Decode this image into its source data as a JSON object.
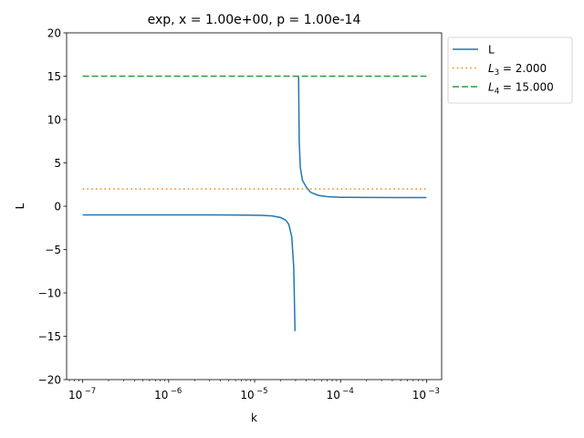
{
  "chart_data": {
    "type": "line",
    "title": "exp, x = 1.00e+00, p = 1.00e-14",
    "xlabel": "k",
    "ylabel": "L",
    "xscale": "log",
    "xlim": [
      6.5e-08,
      0.0015
    ],
    "ylim": [
      -20,
      20
    ],
    "xticks": [
      "10^-7",
      "10^-6",
      "10^-5",
      "10^-4",
      "10^-3"
    ],
    "yticks": [
      -20,
      -15,
      -10,
      -5,
      0,
      5,
      10,
      15,
      20
    ],
    "legend_position": "outside upper right",
    "series": [
      {
        "name": "L",
        "color": "#1f77b4",
        "style": "solid",
        "x": [
          1e-07,
          3e-07,
          1e-06,
          3e-06,
          8e-06,
          1.2e-05,
          1.6e-05,
          2e-05,
          2.3e-05,
          2.5e-05,
          2.7e-05,
          2.85e-05,
          2.95e-05,
          3.25e-05,
          3.3e-05,
          3.4e-05,
          3.6e-05,
          4e-05,
          4.5e-05,
          5.5e-05,
          7e-05,
          0.0001,
          0.0002,
          0.0005,
          0.001
        ],
        "y": [
          -1.0,
          -1.0,
          -1.0,
          -1.0,
          -1.02,
          -1.05,
          -1.12,
          -1.3,
          -1.6,
          -2.1,
          -3.5,
          -7.0,
          -14.4,
          15.0,
          7.5,
          4.5,
          3.0,
          2.2,
          1.6,
          1.25,
          1.1,
          1.03,
          1.01,
          1.0,
          1.0
        ]
      },
      {
        "name": "L_3 = 2.000",
        "color": "#ff7f0e",
        "style": "dotted",
        "x": [
          1e-07,
          0.001
        ],
        "y": [
          2.0,
          2.0
        ]
      },
      {
        "name": "L_4 = 15.000",
        "color": "#2ca02c",
        "style": "dashed",
        "x": [
          1e-07,
          0.001
        ],
        "y": [
          15.0,
          15.0
        ]
      }
    ]
  },
  "legend": {
    "items": [
      {
        "label": "L"
      },
      {
        "label_main": "L",
        "sub": "3",
        "rest": " = 2.000"
      },
      {
        "label_main": "L",
        "sub": "4",
        "rest": " = 15.000"
      }
    ]
  }
}
